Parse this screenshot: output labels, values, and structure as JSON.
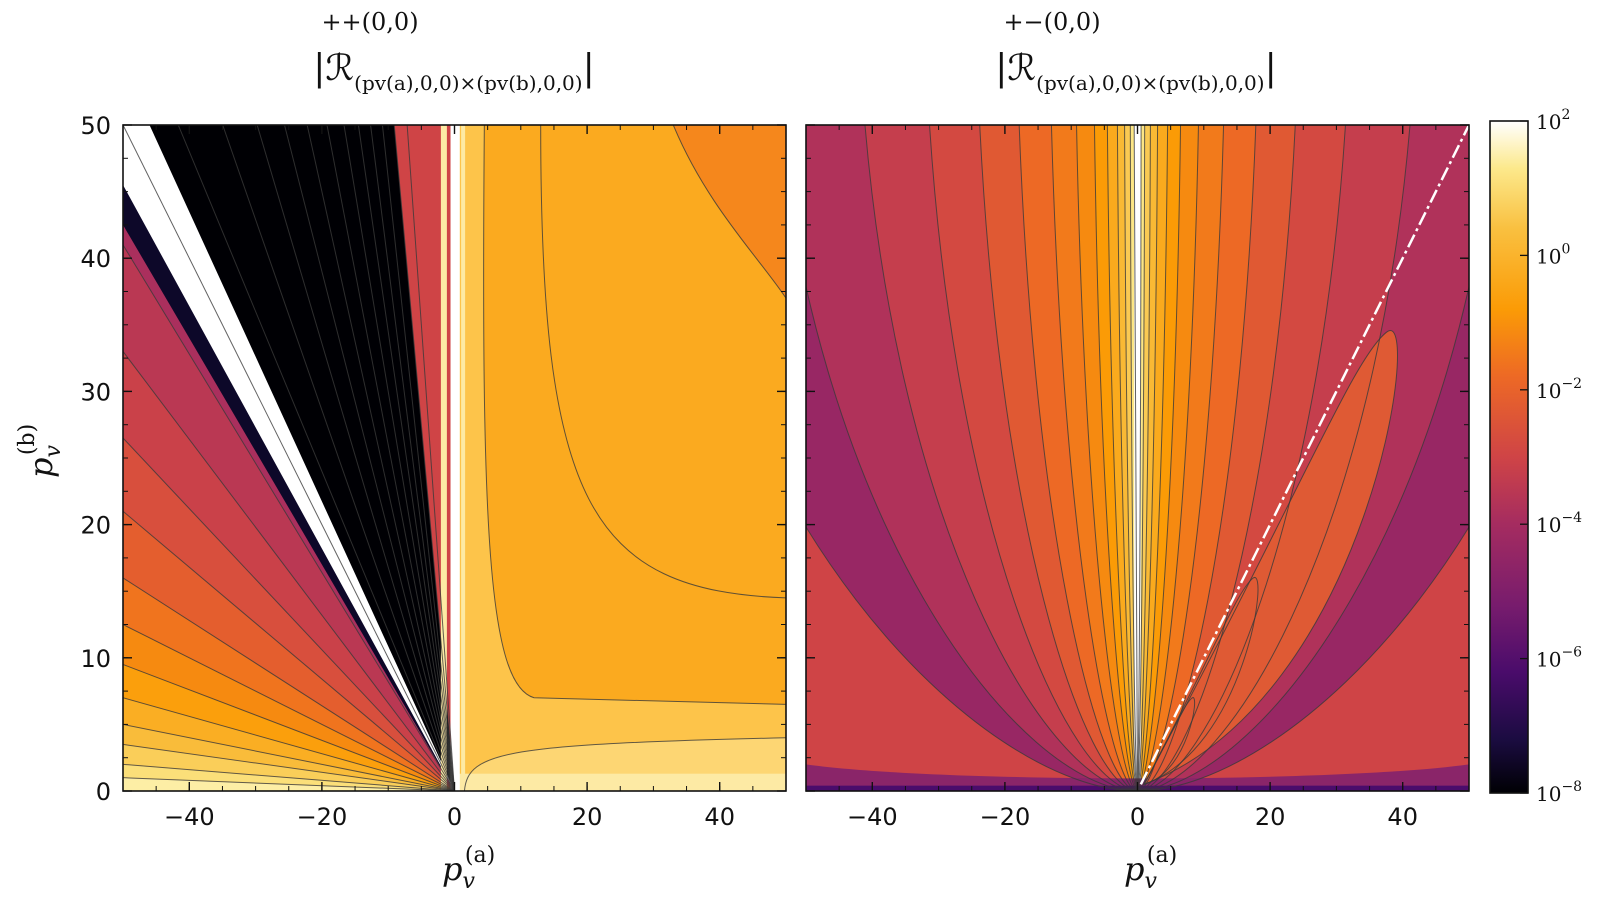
{
  "chart_data": [
    {
      "type": "heatmap",
      "id": "left",
      "title_main": "|ℛ",
      "title_super": "++(0,0)",
      "title_sub": "(pv(a),0,0)×(pv(b),0,0)",
      "title_close": "|",
      "xlabel": "p",
      "xlabel_sub": "v",
      "xlabel_sup": "(a)",
      "ylabel": "p",
      "ylabel_sub": "v",
      "ylabel_sup": "(b)",
      "xlim": [
        -50,
        50
      ],
      "ylim": [
        0,
        50
      ],
      "xticks": [
        -40,
        -20,
        0,
        20,
        40
      ],
      "yticks": [
        0,
        10,
        20,
        30,
        40,
        50
      ],
      "xtick_labels": [
        "−40",
        "−20",
        "0",
        "20",
        "40"
      ],
      "ytick_labels": [
        "0",
        "10",
        "20",
        "30",
        "40",
        "50"
      ],
      "log_scale": true
    },
    {
      "type": "heatmap",
      "id": "right",
      "title_main": "|ℛ",
      "title_super": "+−(0,0)",
      "title_sub": "(pv(a),0,0)×(pv(b),0,0)",
      "title_close": "|",
      "xlabel": "p",
      "xlabel_sub": "v",
      "xlabel_sup": "(a)",
      "xlim": [
        -50,
        50
      ],
      "ylim": [
        0,
        50
      ],
      "xticks": [
        -40,
        -20,
        0,
        20,
        40
      ],
      "xtick_labels": [
        "−40",
        "−20",
        "0",
        "20",
        "40"
      ],
      "log_scale": true
    }
  ],
  "colorbar": {
    "scale": "log",
    "range": [
      1e-08,
      100
    ],
    "ticks": [
      {
        "exp": "2",
        "value": 100
      },
      {
        "exp": "0",
        "value": 1
      },
      {
        "exp": "−2",
        "value": 0.01
      },
      {
        "exp": "−4",
        "value": 0.0001
      },
      {
        "exp": "−6",
        "value": 1e-06
      },
      {
        "exp": "−8",
        "value": 1e-08
      }
    ],
    "base": "10",
    "colormap": "inferno",
    "colors": [
      "#000004",
      "#1b0c41",
      "#4a0c6b",
      "#781c6d",
      "#a52c60",
      "#cf4446",
      "#ed6925",
      "#fb9b06",
      "#f7d13d",
      "#fcffa4",
      "#ffffff"
    ]
  }
}
